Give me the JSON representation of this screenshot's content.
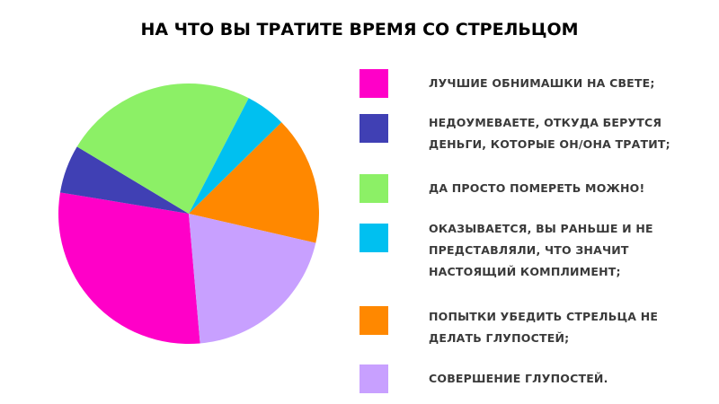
{
  "chart_data": {
    "type": "pie",
    "title": "НА ЧТО ВЫ ТРАТИТЕ ВРЕМЯ СО СТРЕЛЬЦОМ",
    "legend_position": "right",
    "slices": [
      {
        "label": "ЛУЧШИЕ ОБНИМАШКИ НА СВЕТЕ;",
        "value": 29,
        "color": "#ff00c8"
      },
      {
        "label": "НЕДОУМЕВАЕТЕ, ОТКУДА БЕРУТСЯ ДЕНЬГИ, КОТОРЫЕ ОН/ОНА ТРАТИТ;",
        "value": 6,
        "color": "#4040b4"
      },
      {
        "label": "ДА ПРОСТО ПОМЕРЕТЬ МОЖНО!",
        "value": 24,
        "color": "#8cf066"
      },
      {
        "label": "ОКАЗЫВАЕТСЯ, ВЫ РАНЬШЕ И НЕ ПРЕДСТАВЛЯЛИ, ЧТО ЗНАЧИТ НАСТОЯЩИЙ КОМПЛИМЕНТ;",
        "value": 5,
        "color": "#00c0f0"
      },
      {
        "label": "ПОПЫТКИ УБЕДИТЬ СТРЕЛЬЦА НЕ ДЕЛАТЬ ГЛУПОСТЕЙ;",
        "value": 16,
        "color": "#ff8800"
      },
      {
        "label": "СОВЕРШЕНИЕ ГЛУПОСТЕЙ.",
        "value": 20,
        "color": "#c8a0ff"
      }
    ]
  }
}
